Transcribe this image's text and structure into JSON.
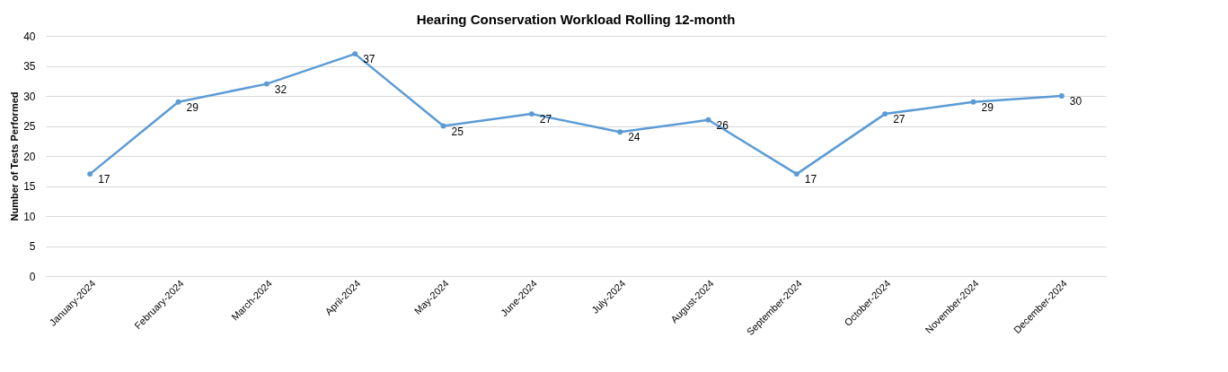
{
  "chart_data": {
    "type": "line",
    "title": "Hearing Conservation Workload Rolling 12-month",
    "ylabel": "Number of Tests Performed",
    "categories": [
      "January-2024",
      "February-2024",
      "March-2024",
      "April-2024",
      "May-2024",
      "June-2024",
      "July-2024",
      "August-2024",
      "September-2024",
      "October-2024",
      "November-2024",
      "December-2024"
    ],
    "values": [
      17,
      29,
      32,
      37,
      25,
      27,
      24,
      26,
      17,
      27,
      29,
      30
    ],
    "color": "#5b9bd5",
    "ylim": [
      0,
      40
    ],
    "yticks": [
      0,
      5,
      10,
      15,
      20,
      25,
      30,
      35,
      40
    ],
    "grid": "y",
    "marker": "circle",
    "line_style": "solid",
    "data_labels": true
  }
}
